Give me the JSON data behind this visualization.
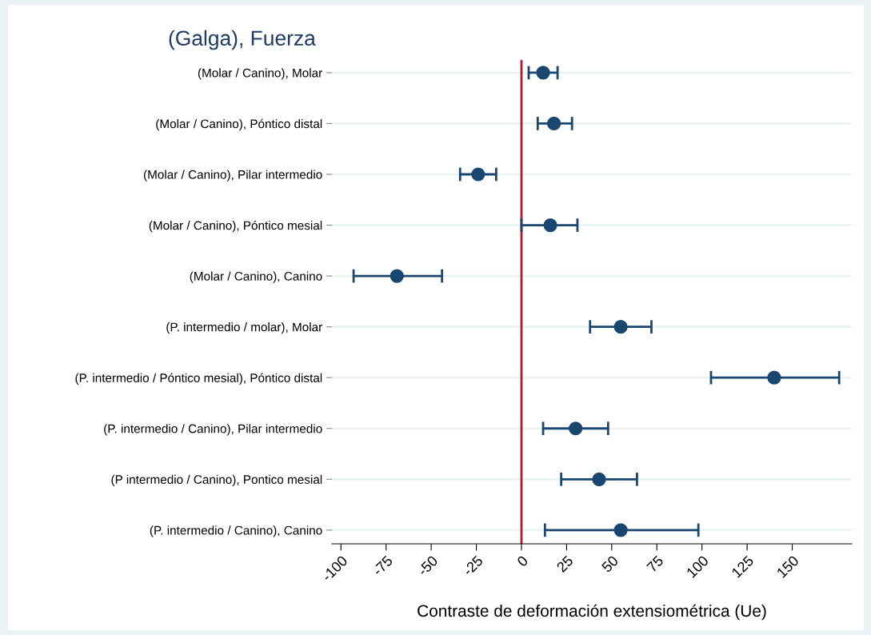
{
  "chart_data": {
    "type": "scatter",
    "orientation": "horizontal",
    "title": "(Galga), Fuerza",
    "xlabel": "Contraste de deformación extensiométrica (Ue)",
    "categories": [
      "(Molar / Canino), Molar",
      "(Molar / Canino), Póntico distal",
      "(Molar / Canino), Pilar intermedio",
      "(Molar / Canino), Póntico mesial",
      "(Molar / Canino), Canino",
      "(P. intermedio / molar), Molar",
      "(P. intermedio / Póntico mesial), Póntico distal",
      "(P. intermedio / Canino), Pilar intermedio",
      "(P intermedio / Canino), Pontico mesial",
      "(P. intermedio / Canino), Canino"
    ],
    "series": [
      {
        "color": "#1a476f",
        "values": [
          12,
          18,
          -24,
          16,
          -69,
          55,
          140,
          30,
          43,
          55
        ],
        "errors": [
          [
            4,
            20
          ],
          [
            9,
            28
          ],
          [
            -34,
            -14
          ],
          [
            0,
            31
          ],
          [
            -93,
            -44
          ],
          [
            38,
            72
          ],
          [
            105,
            176
          ],
          [
            12,
            48
          ],
          [
            22,
            64
          ],
          [
            13,
            98
          ]
        ]
      }
    ],
    "xlim": [
      -105,
      183
    ],
    "xticks": [
      -100,
      -75,
      -50,
      -25,
      0,
      25,
      50,
      75,
      100,
      125,
      150
    ],
    "marker": "circle",
    "grid": "y",
    "ref_lines": [
      {
        "axis": "x",
        "value": 0,
        "color": "#b5192d"
      }
    ]
  }
}
